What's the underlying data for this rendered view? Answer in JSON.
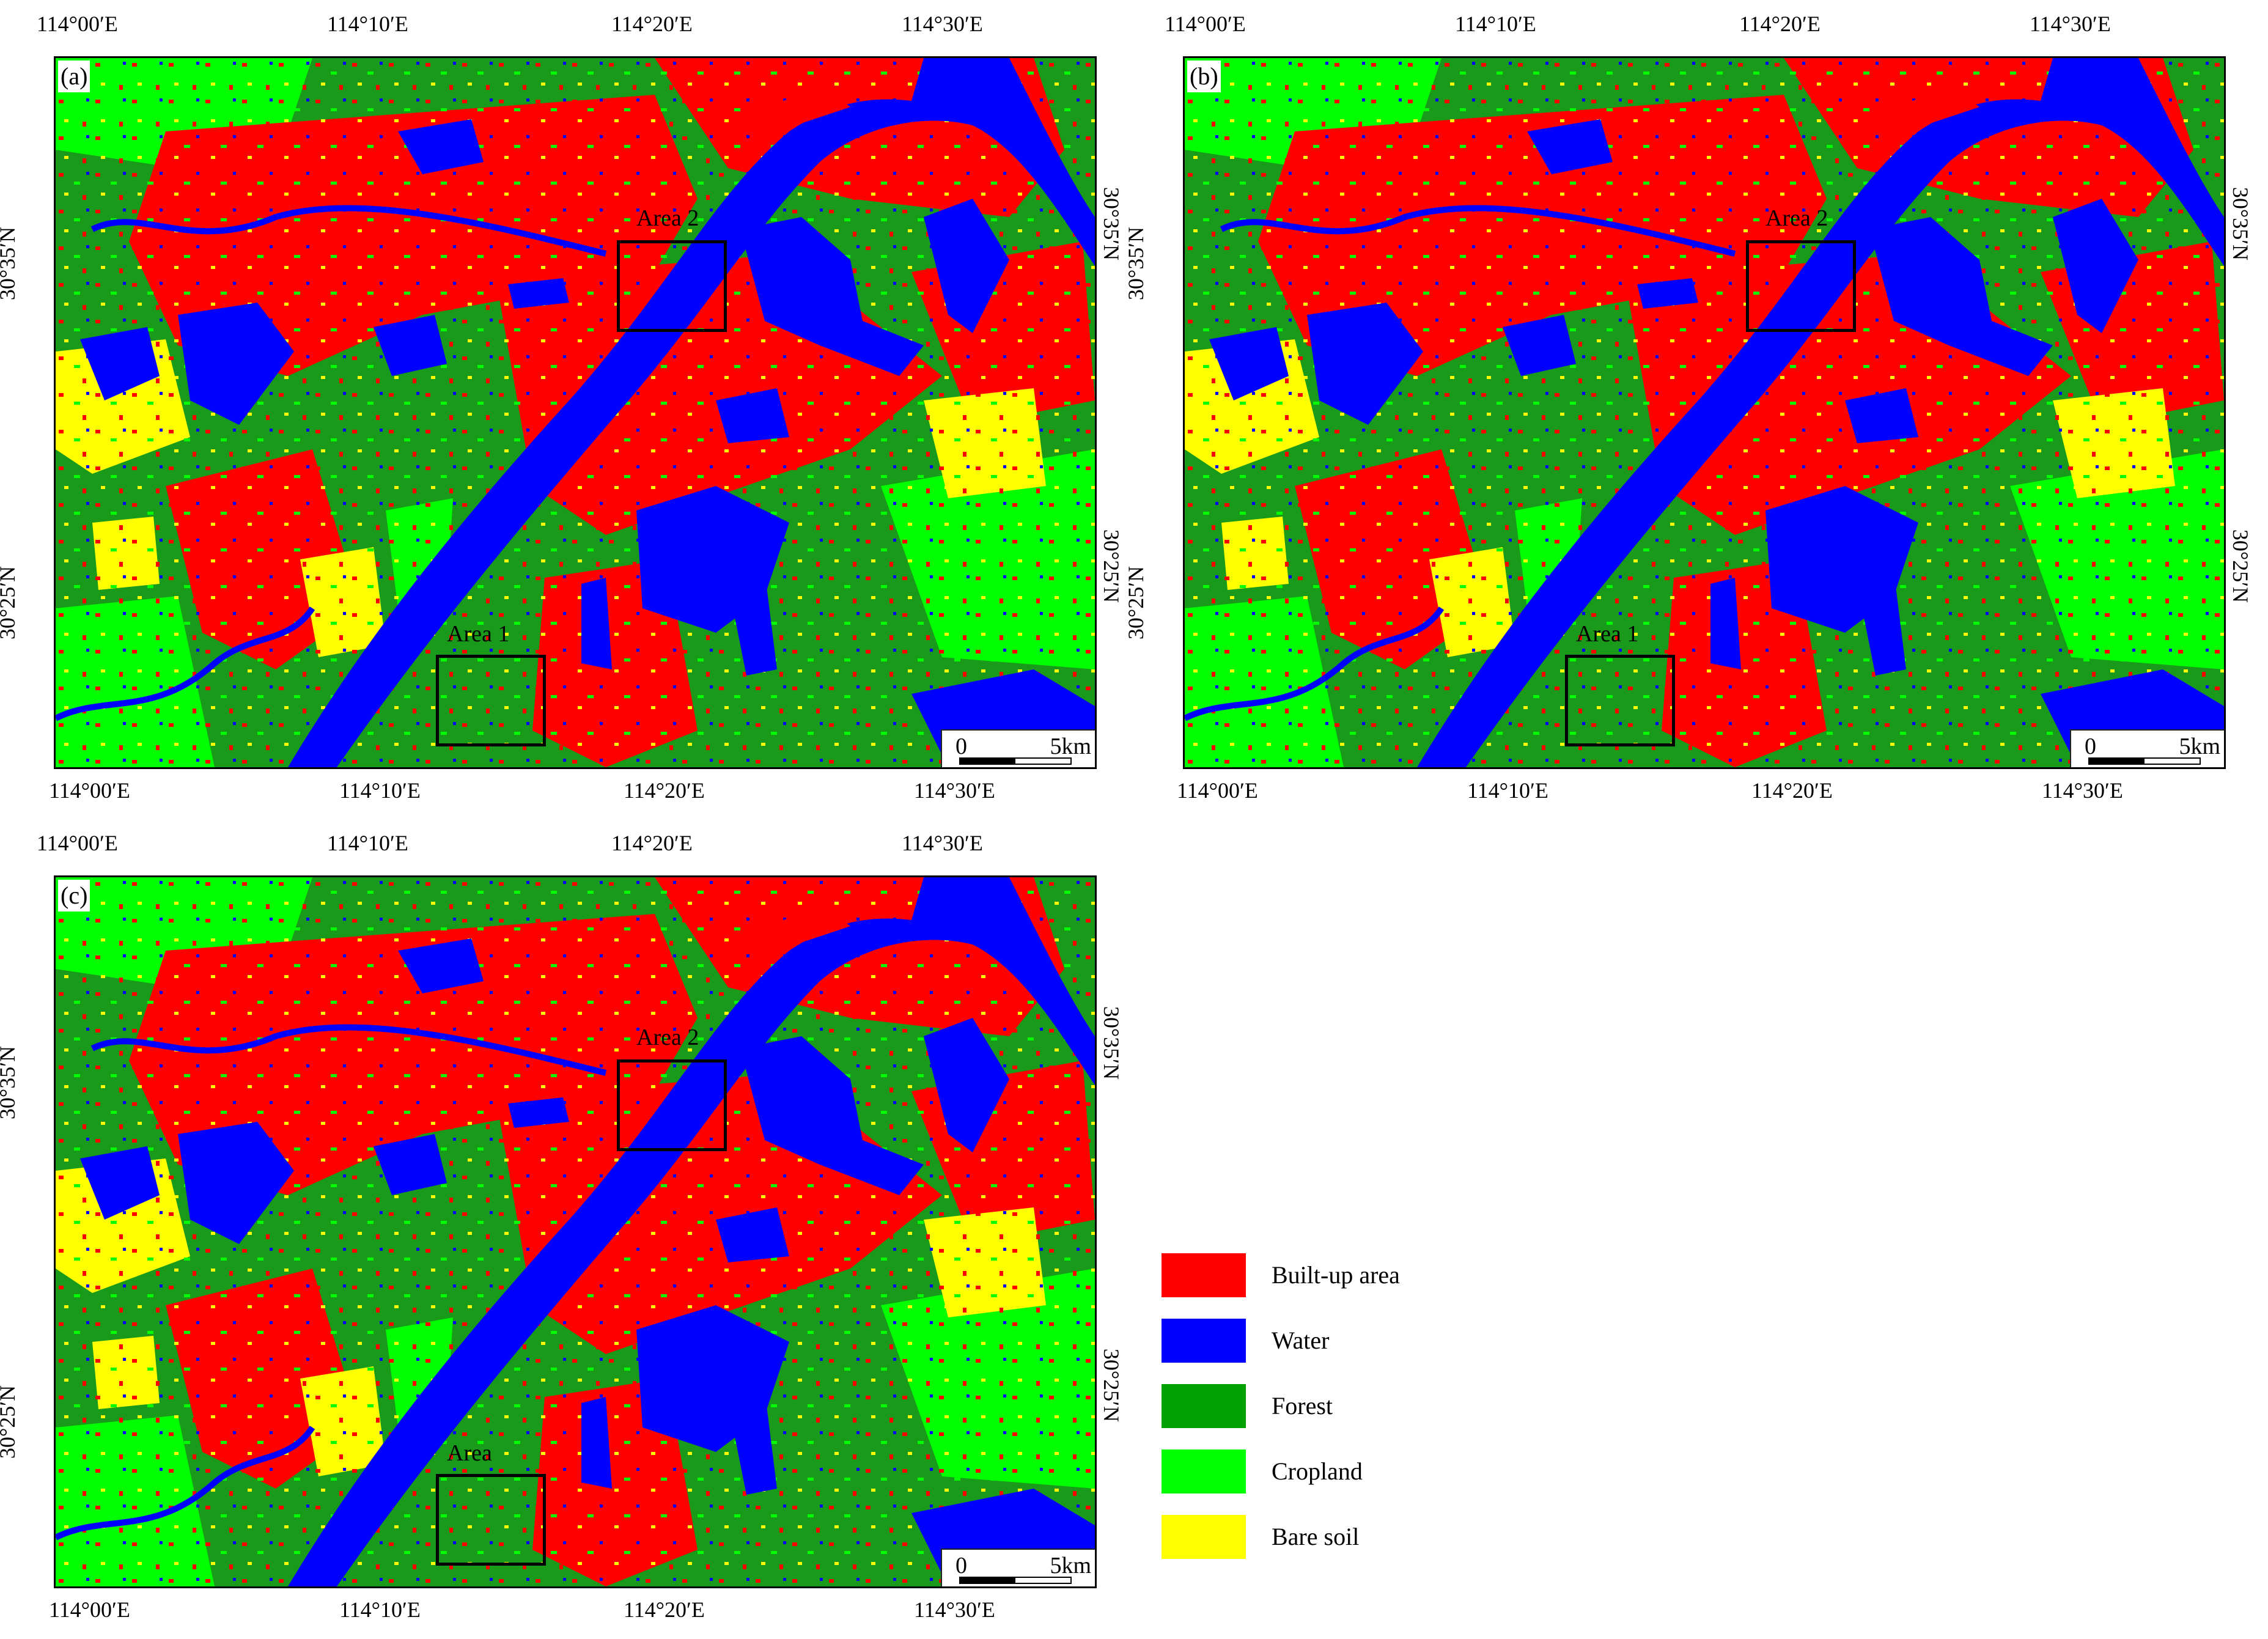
{
  "panels": [
    {
      "label": "(a)",
      "area1": "Area 1",
      "area2": "Area 2"
    },
    {
      "label": "(b)",
      "area1": "Area 1",
      "area2": "Area 2"
    },
    {
      "label": "(c)",
      "area1": "Area",
      "area2": "Area 2"
    }
  ],
  "axes": {
    "lon_ticks": [
      "114°00′E",
      "114°10′E",
      "114°20′E",
      "114°30′E"
    ],
    "lat_ticks": [
      "30°35′N",
      "30°25′N"
    ]
  },
  "scale_bar": {
    "zero": "0",
    "dist": "5km"
  },
  "legend": [
    {
      "label": "Built-up area",
      "color": "#ff0000"
    },
    {
      "label": "Water",
      "color": "#0000ff"
    },
    {
      "label": "Forest",
      "color": "#00a000"
    },
    {
      "label": "Cropland",
      "color": "#00ff00"
    },
    {
      "label": "Bare soil",
      "color": "#ffff00"
    }
  ]
}
